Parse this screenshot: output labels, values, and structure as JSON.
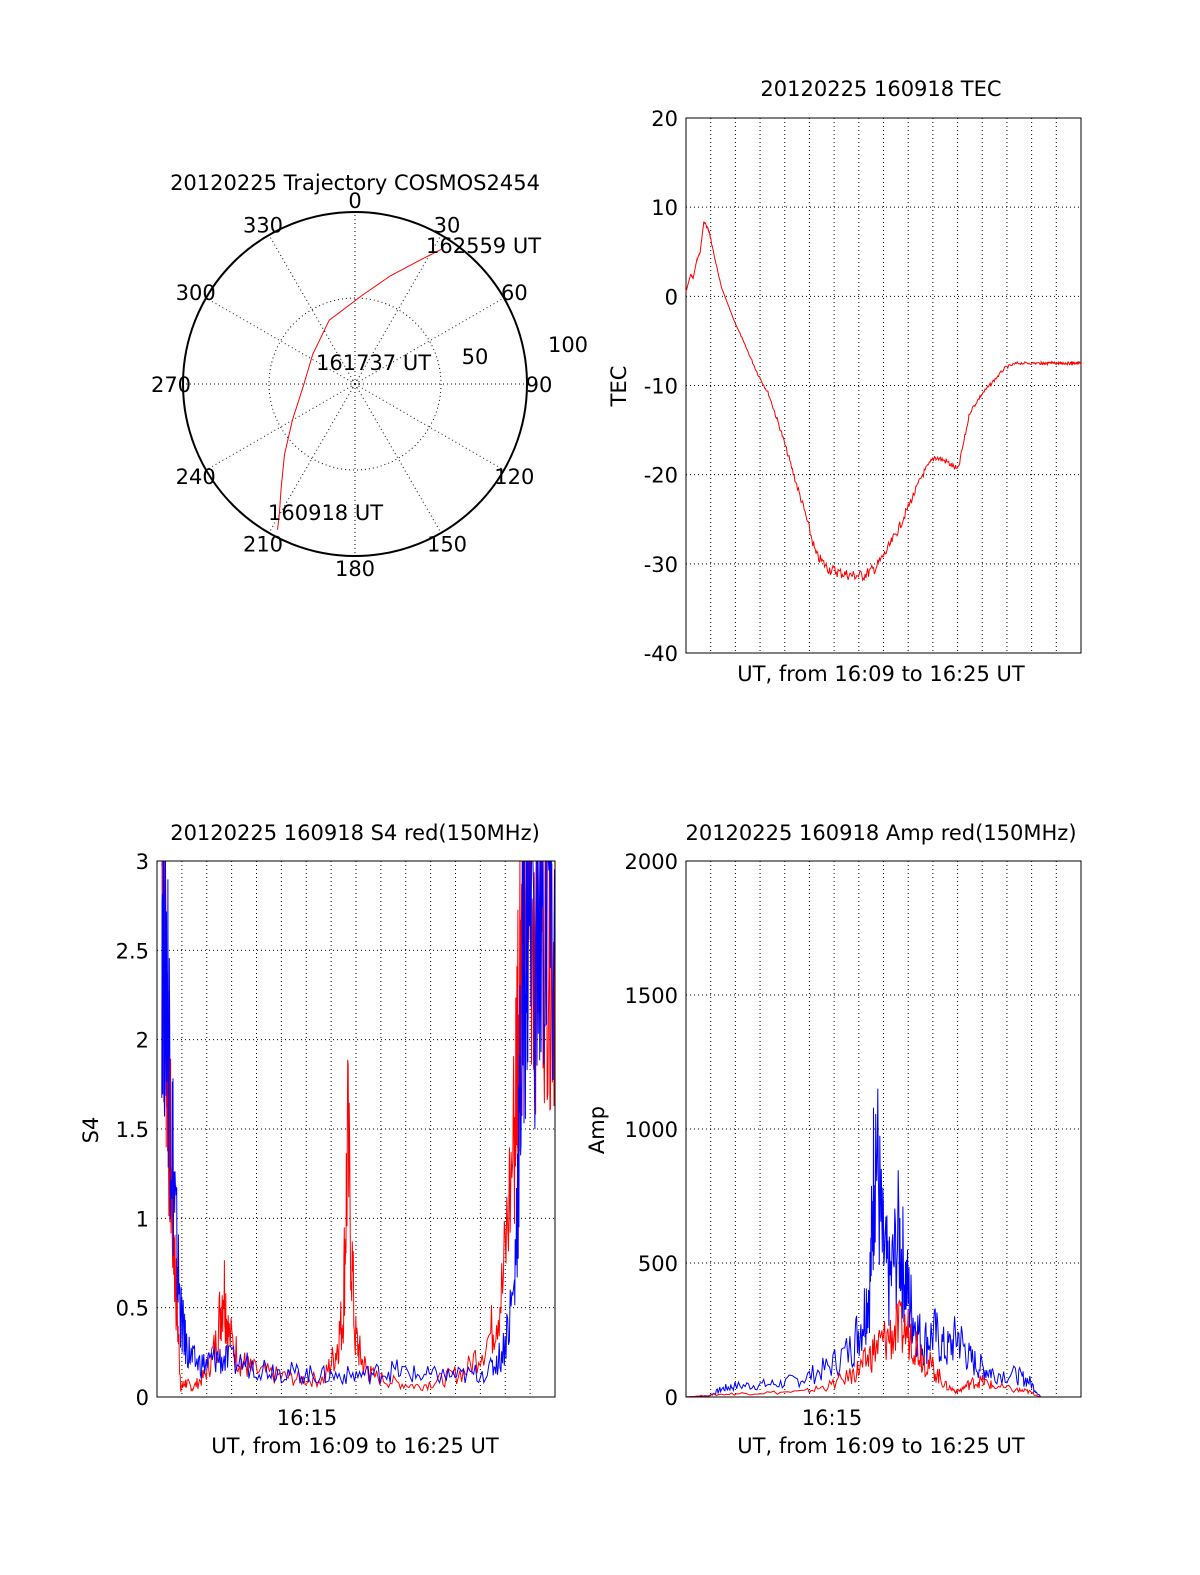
{
  "figure": {
    "colors": {
      "background": "#ffffff",
      "axes": "#000000",
      "red_trace": "#ff0000",
      "blue_trace": "#0000ff"
    }
  },
  "chart_data": [
    {
      "type": "polar",
      "title": "20120225 Trajectory COSMOS2454",
      "angle_labels": [
        "0",
        "30",
        "60",
        "90",
        "120",
        "150",
        "180",
        "210",
        "240",
        "270",
        "300",
        "330"
      ],
      "radius_labels": [
        "50",
        "100"
      ],
      "radius_range": [
        0,
        100
      ],
      "grid": true,
      "series": [
        {
          "color": "#ff0000",
          "points_az_r": [
            [
              208,
              96
            ],
            [
              210,
              88
            ],
            [
              215,
              75
            ],
            [
              225,
              58
            ],
            [
              240,
              42
            ],
            [
              268,
              30
            ],
            [
              305,
              30
            ],
            [
              338,
              40
            ],
            [
              5,
              52
            ],
            [
              18,
              66
            ],
            [
              27,
              80
            ],
            [
              33,
              94
            ]
          ]
        }
      ],
      "annotations": [
        "160918 UT",
        "161737 UT",
        "162559 UT"
      ]
    },
    {
      "type": "line",
      "title": "20120225 160918 TEC",
      "xlabel": "UT, from 16:09 to 16:25 UT",
      "ylabel": "TEC",
      "xlim": [
        0,
        16.7
      ],
      "ylim": [
        -40,
        20
      ],
      "yticks": [
        "20",
        "10",
        "0",
        "-10",
        "-20",
        "-30",
        "-40"
      ],
      "grid": true,
      "series": [
        {
          "color": "#ff0000",
          "x": [
            0.0,
            0.2,
            0.3,
            0.45,
            0.6,
            0.75,
            0.9,
            1.0,
            1.2,
            1.5,
            2.0,
            2.5,
            3.0,
            3.5,
            4.0,
            4.5,
            5.0,
            5.5,
            6.0,
            6.5,
            7.0,
            7.5,
            8.0,
            8.5,
            9.0,
            9.5,
            10.0,
            10.5,
            11.0,
            11.5,
            12.0,
            12.5,
            13.0,
            13.5,
            14.0,
            14.5,
            15.0,
            15.2,
            15.35,
            15.5,
            15.8,
            16.0,
            16.3,
            16.5,
            16.7
          ],
          "y": [
            0.5,
            2.5,
            2.0,
            4.0,
            5.0,
            8.3,
            7.8,
            7.0,
            4.5,
            1.0,
            -2.5,
            -5.5,
            -8.5,
            -11.0,
            -15.0,
            -19.5,
            -24.0,
            -29.0,
            -30.5,
            -31.0,
            -31.3,
            -31.3,
            -30.5,
            -28.5,
            -26.0,
            -23.0,
            -20.0,
            -18.0,
            -18.5,
            -19.5,
            -13.0,
            -11.0,
            -9.5,
            -8.0,
            -7.5,
            -7.5,
            -7.5,
            -7.5,
            -7.5,
            -7.5,
            -7.5,
            -7.5,
            -7.5,
            -7.5,
            -7.5
          ]
        }
      ]
    },
    {
      "type": "line",
      "title": "20120225 160918 S4 red(150MHz)",
      "xlabel": "UT, from 16:09 to 16:25 UT",
      "ylabel": "S4",
      "xlim": [
        0,
        16.7
      ],
      "ylim": [
        0,
        3
      ],
      "xticks": [
        "16:15"
      ],
      "yticks": [
        "0",
        "0.5",
        "1",
        "1.5",
        "2",
        "2.5",
        "3"
      ],
      "grid": true,
      "series": [
        {
          "color": "#ff0000",
          "x": [
            0.2,
            0.4,
            0.6,
            0.8,
            1.0,
            1.2,
            1.5,
            2.0,
            2.5,
            2.8,
            3.0,
            3.5,
            4.0,
            5.0,
            6.0,
            7.0,
            7.5,
            7.8,
            8.0,
            8.3,
            8.6,
            9.0,
            10.0,
            11.0,
            12.0,
            13.0,
            14.0,
            14.5,
            15.0,
            15.2,
            15.4,
            15.6,
            16.0,
            16.4,
            16.7
          ],
          "y": [
            3.0,
            2.2,
            1.2,
            0.6,
            0.05,
            0.08,
            0.05,
            0.12,
            0.3,
            0.65,
            0.35,
            0.2,
            0.15,
            0.12,
            0.1,
            0.1,
            0.25,
            0.45,
            1.4,
            0.35,
            0.2,
            0.12,
            0.08,
            0.06,
            0.1,
            0.15,
            0.35,
            0.6,
            1.5,
            2.5,
            3.0,
            3.0,
            2.8,
            3.0,
            2.5
          ]
        },
        {
          "color": "#0000ff",
          "x": [
            0.2,
            0.4,
            0.6,
            0.8,
            1.0,
            1.2,
            1.5,
            2.0,
            2.5,
            3.0,
            4.0,
            5.0,
            6.0,
            7.0,
            8.0,
            9.0,
            10.0,
            11.0,
            12.0,
            13.0,
            14.0,
            14.5,
            15.0,
            15.2,
            15.4,
            15.6,
            16.0,
            16.4,
            16.7
          ],
          "y": [
            3.0,
            2.5,
            1.6,
            0.9,
            0.45,
            0.3,
            0.2,
            0.18,
            0.22,
            0.2,
            0.18,
            0.15,
            0.13,
            0.12,
            0.12,
            0.13,
            0.15,
            0.12,
            0.12,
            0.12,
            0.15,
            0.25,
            0.6,
            1.5,
            2.6,
            3.0,
            2.5,
            2.9,
            2.3
          ]
        }
      ]
    },
    {
      "type": "line",
      "title": "20120225 160918 Amp red(150MHz)",
      "xlabel": "UT, from 16:09 to 16:25 UT",
      "ylabel": "Amp",
      "xlim": [
        0,
        16.7
      ],
      "ylim": [
        0,
        2000
      ],
      "xticks": [
        "16:15"
      ],
      "yticks": [
        "0",
        "500",
        "1000",
        "1500",
        "2000"
      ],
      "grid": true,
      "series": [
        {
          "color": "#0000ff",
          "x": [
            0.0,
            1.0,
            1.5,
            2.0,
            3.0,
            4.0,
            5.0,
            6.0,
            7.0,
            7.5,
            7.8,
            8.0,
            8.3,
            8.6,
            9.0,
            9.3,
            9.6,
            10.0,
            10.5,
            11.0,
            11.5,
            12.0,
            12.5,
            13.0,
            14.0,
            14.5,
            15.0,
            16.7
          ],
          "y": [
            0,
            5,
            30,
            40,
            45,
            50,
            70,
            110,
            180,
            300,
            450,
            1000,
            560,
            420,
            600,
            430,
            300,
            200,
            240,
            170,
            230,
            140,
            110,
            90,
            80,
            60,
            0,
            0
          ]
        },
        {
          "color": "#ff0000",
          "x": [
            0.0,
            1.5,
            3.0,
            5.0,
            6.0,
            7.0,
            7.5,
            8.0,
            8.5,
            9.0,
            9.5,
            10.0,
            10.5,
            11.0,
            11.5,
            12.0,
            12.5,
            13.0,
            14.0,
            14.5,
            15.0,
            16.7
          ],
          "y": [
            0,
            10,
            15,
            20,
            40,
            80,
            120,
            180,
            220,
            250,
            240,
            150,
            100,
            40,
            20,
            50,
            60,
            40,
            25,
            20,
            0,
            0
          ]
        }
      ]
    }
  ]
}
